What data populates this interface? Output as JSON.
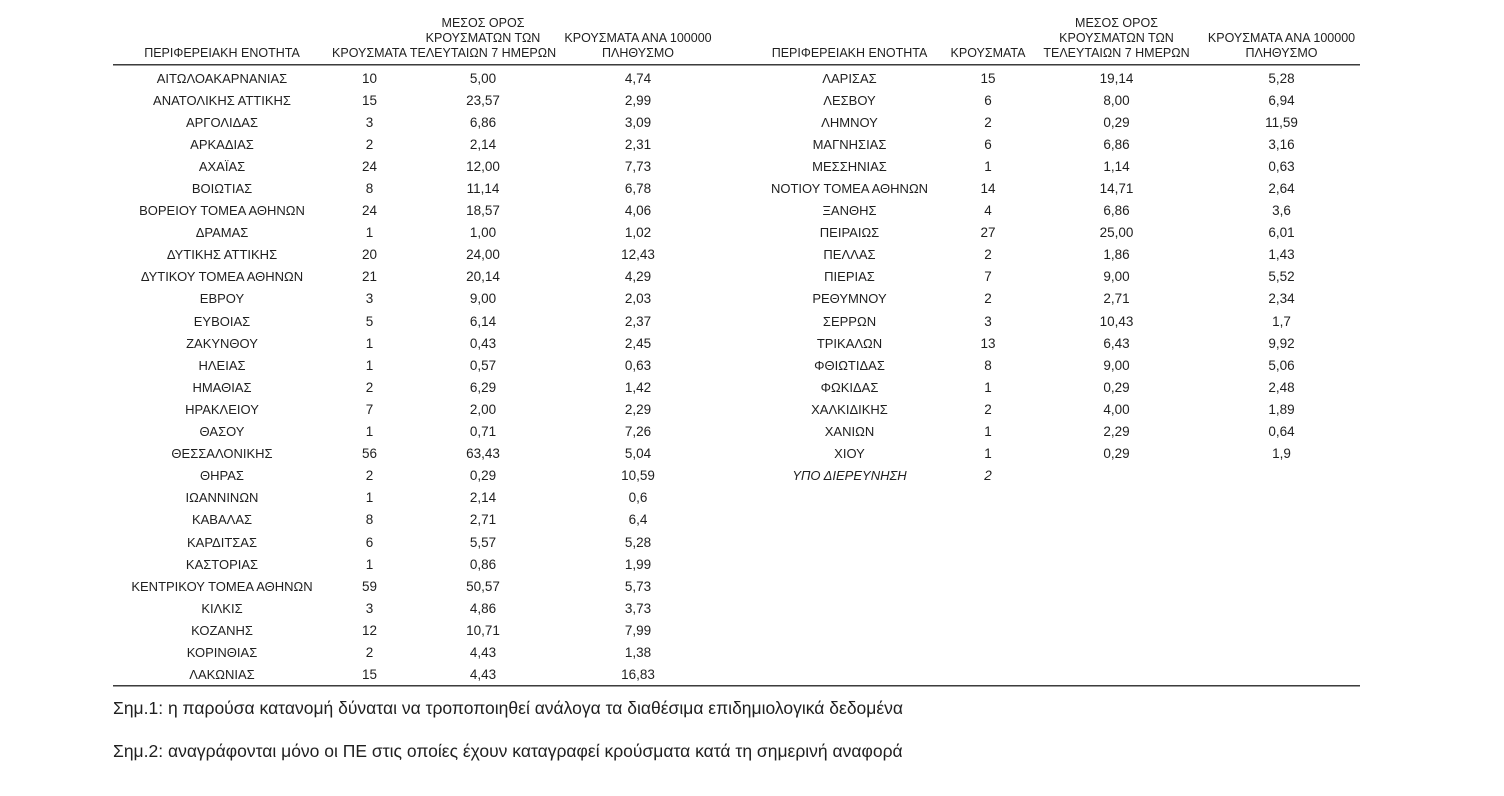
{
  "table_headers": {
    "region": "ΠΕΡΙΦΕΡΕΙΑΚΗ ΕΝΟΤΗΤΑ",
    "cases": "ΚΡΟΥΣΜΑΤΑ",
    "avg7_line1": "ΜΕΣΟΣ ΟΡΟΣ",
    "avg7_line2": "ΚΡΟΥΣΜΑΤΩΝ ΤΩΝ",
    "avg7_line3": "ΤΕΛΕΥΤΑΙΩΝ 7 ΗΜΕΡΩΝ",
    "per100k_line1": "ΚΡΟΥΣΜΑΤΑ ΑΝΑ 100000",
    "per100k_line2": "ΠΛΗΘΥΣΜΟ"
  },
  "left_table": {
    "rows": [
      {
        "name": "ΑΙΤΩΛΟΑΚΑΡΝΑΝΙΑΣ",
        "cases": "10",
        "avg7": "5,00",
        "per100k": "4,74"
      },
      {
        "name": "ΑΝΑΤΟΛΙΚΗΣ ΑΤΤΙΚΗΣ",
        "cases": "15",
        "avg7": "23,57",
        "per100k": "2,99"
      },
      {
        "name": "ΑΡΓΟΛΙΔΑΣ",
        "cases": "3",
        "avg7": "6,86",
        "per100k": "3,09"
      },
      {
        "name": "ΑΡΚΑΔΙΑΣ",
        "cases": "2",
        "avg7": "2,14",
        "per100k": "2,31"
      },
      {
        "name": "ΑΧΑΪΑΣ",
        "cases": "24",
        "avg7": "12,00",
        "per100k": "7,73"
      },
      {
        "name": "ΒΟΙΩΤΙΑΣ",
        "cases": "8",
        "avg7": "11,14",
        "per100k": "6,78"
      },
      {
        "name": "ΒΟΡΕΙΟΥ ΤΟΜΕΑ ΑΘΗΝΩΝ",
        "cases": "24",
        "avg7": "18,57",
        "per100k": "4,06"
      },
      {
        "name": "ΔΡΑΜΑΣ",
        "cases": "1",
        "avg7": "1,00",
        "per100k": "1,02"
      },
      {
        "name": "ΔΥΤΙΚΗΣ ΑΤΤΙΚΗΣ",
        "cases": "20",
        "avg7": "24,00",
        "per100k": "12,43"
      },
      {
        "name": "ΔΥΤΙΚΟΥ ΤΟΜΕΑ ΑΘΗΝΩΝ",
        "cases": "21",
        "avg7": "20,14",
        "per100k": "4,29"
      },
      {
        "name": "ΕΒΡΟΥ",
        "cases": "3",
        "avg7": "9,00",
        "per100k": "2,03"
      },
      {
        "name": "ΕΥΒΟΙΑΣ",
        "cases": "5",
        "avg7": "6,14",
        "per100k": "2,37"
      },
      {
        "name": "ΖΑΚΥΝΘΟΥ",
        "cases": "1",
        "avg7": "0,43",
        "per100k": "2,45"
      },
      {
        "name": "ΗΛΕΙΑΣ",
        "cases": "1",
        "avg7": "0,57",
        "per100k": "0,63"
      },
      {
        "name": "ΗΜΑΘΙΑΣ",
        "cases": "2",
        "avg7": "6,29",
        "per100k": "1,42"
      },
      {
        "name": "ΗΡΑΚΛΕΙΟΥ",
        "cases": "7",
        "avg7": "2,00",
        "per100k": "2,29"
      },
      {
        "name": "ΘΑΣΟΥ",
        "cases": "1",
        "avg7": "0,71",
        "per100k": "7,26"
      },
      {
        "name": "ΘΕΣΣΑΛΟΝΙΚΗΣ",
        "cases": "56",
        "avg7": "63,43",
        "per100k": "5,04"
      },
      {
        "name": "ΘΗΡΑΣ",
        "cases": "2",
        "avg7": "0,29",
        "per100k": "10,59"
      },
      {
        "name": "ΙΩΑΝΝΙΝΩΝ",
        "cases": "1",
        "avg7": "2,14",
        "per100k": "0,6"
      },
      {
        "name": "ΚΑΒΑΛΑΣ",
        "cases": "8",
        "avg7": "2,71",
        "per100k": "6,4"
      },
      {
        "name": "ΚΑΡΔΙΤΣΑΣ",
        "cases": "6",
        "avg7": "5,57",
        "per100k": "5,28"
      },
      {
        "name": "ΚΑΣΤΟΡΙΑΣ",
        "cases": "1",
        "avg7": "0,86",
        "per100k": "1,99"
      },
      {
        "name": "ΚΕΝΤΡΙΚΟΥ ΤΟΜΕΑ ΑΘΗΝΩΝ",
        "cases": "59",
        "avg7": "50,57",
        "per100k": "5,73"
      },
      {
        "name": "ΚΙΛΚΙΣ",
        "cases": "3",
        "avg7": "4,86",
        "per100k": "3,73"
      },
      {
        "name": "ΚΟΖΑΝΗΣ",
        "cases": "12",
        "avg7": "10,71",
        "per100k": "7,99"
      },
      {
        "name": "ΚΟΡΙΝΘΙΑΣ",
        "cases": "2",
        "avg7": "4,43",
        "per100k": "1,38"
      },
      {
        "name": "ΛΑΚΩΝΙΑΣ",
        "cases": "15",
        "avg7": "4,43",
        "per100k": "16,83"
      }
    ]
  },
  "right_table": {
    "rows": [
      {
        "name": "ΛΑΡΙΣΑΣ",
        "cases": "15",
        "avg7": "19,14",
        "per100k": "5,28"
      },
      {
        "name": "ΛΕΣΒΟΥ",
        "cases": "6",
        "avg7": "8,00",
        "per100k": "6,94"
      },
      {
        "name": "ΛΗΜΝΟΥ",
        "cases": "2",
        "avg7": "0,29",
        "per100k": "11,59"
      },
      {
        "name": "ΜΑΓΝΗΣΙΑΣ",
        "cases": "6",
        "avg7": "6,86",
        "per100k": "3,16"
      },
      {
        "name": "ΜΕΣΣΗΝΙΑΣ",
        "cases": "1",
        "avg7": "1,14",
        "per100k": "0,63"
      },
      {
        "name": "ΝΟΤΙΟΥ ΤΟΜΕΑ ΑΘΗΝΩΝ",
        "cases": "14",
        "avg7": "14,71",
        "per100k": "2,64"
      },
      {
        "name": "ΞΑΝΘΗΣ",
        "cases": "4",
        "avg7": "6,86",
        "per100k": "3,6"
      },
      {
        "name": "ΠΕΙΡΑΙΩΣ",
        "cases": "27",
        "avg7": "25,00",
        "per100k": "6,01"
      },
      {
        "name": "ΠΕΛΛΑΣ",
        "cases": "2",
        "avg7": "1,86",
        "per100k": "1,43"
      },
      {
        "name": "ΠΙΕΡΙΑΣ",
        "cases": "7",
        "avg7": "9,00",
        "per100k": "5,52"
      },
      {
        "name": "ΡΕΘΥΜΝΟΥ",
        "cases": "2",
        "avg7": "2,71",
        "per100k": "2,34"
      },
      {
        "name": "ΣΕΡΡΩΝ",
        "cases": "3",
        "avg7": "10,43",
        "per100k": "1,7"
      },
      {
        "name": "ΤΡΙΚΑΛΩΝ",
        "cases": "13",
        "avg7": "6,43",
        "per100k": "9,92"
      },
      {
        "name": "ΦΘΙΩΤΙΔΑΣ",
        "cases": "8",
        "avg7": "9,00",
        "per100k": "5,06"
      },
      {
        "name": "ΦΩΚΙΔΑΣ",
        "cases": "1",
        "avg7": "0,29",
        "per100k": "2,48"
      },
      {
        "name": "ΧΑΛΚΙΔΙΚΗΣ",
        "cases": "2",
        "avg7": "4,00",
        "per100k": "1,89"
      },
      {
        "name": "ΧΑΝΙΩΝ",
        "cases": "1",
        "avg7": "2,29",
        "per100k": "0,64"
      },
      {
        "name": "ΧΙΟΥ",
        "cases": "1",
        "avg7": "0,29",
        "per100k": "1,9"
      },
      {
        "name": "ΥΠΟ ΔΙΕΡΕΥΝΗΣΗ",
        "cases": "2",
        "avg7": "",
        "per100k": "",
        "italic": true
      }
    ]
  },
  "notes": {
    "note1": "Σημ.1: η παρούσα κατανομή δύναται να τροποποιηθεί ανάλογα τα διαθέσιμα επιδημιολογικά δεδομένα",
    "note2": "Σημ.2: αναγράφονται μόνο οι ΠΕ στις οποίες έχουν καταγραφεί κρούσματα κατά τη σημερινή αναφορά"
  },
  "colors": {
    "background": "#ffffff",
    "text": "#1f1f1f",
    "rule": "#3d3d3d"
  }
}
